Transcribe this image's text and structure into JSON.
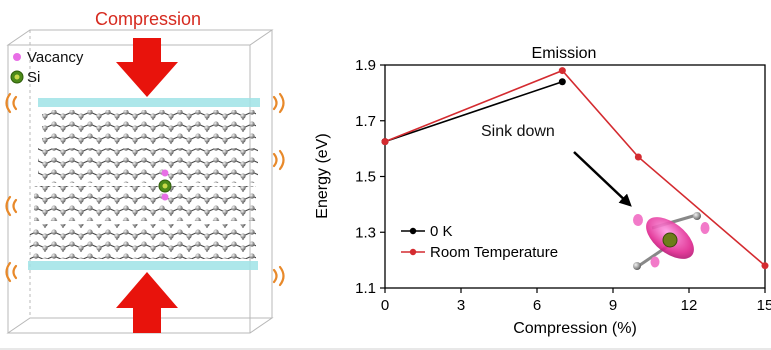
{
  "left_panel": {
    "title": "Compression",
    "legend": [
      {
        "label": "Vacancy",
        "color": "#e86ee6",
        "icon": "vacancy-dot-icon"
      },
      {
        "label": "Si",
        "color": "#4c8a1a",
        "icon": "si-atom-icon"
      }
    ],
    "colors": {
      "arrow": "#e8130c",
      "title": "#d62a1f",
      "atom": "#8c8c8c",
      "hydrogen": "#9fe3e6",
      "vibration": "#e8892a"
    }
  },
  "chart_data": {
    "type": "line",
    "title": "Emission",
    "xlabel": "Compression (%)",
    "ylabel": "Energy (eV)",
    "xlim": [
      0,
      15
    ],
    "ylim": [
      1.1,
      1.9
    ],
    "xticks": [
      0,
      3,
      6,
      9,
      12,
      15
    ],
    "yticks": [
      1.1,
      1.3,
      1.5,
      1.7,
      1.9
    ],
    "grid": false,
    "legend_position": "bottom-left",
    "series": [
      {
        "name": "0 K",
        "color": "#000000",
        "x": [
          0,
          7
        ],
        "y": [
          1.625,
          1.84
        ]
      },
      {
        "name": "Room Temperature",
        "color": "#d42b30",
        "x": [
          0,
          7,
          10,
          15
        ],
        "y": [
          1.625,
          1.88,
          1.57,
          1.18
        ]
      }
    ],
    "annotations": [
      {
        "text": "Sink down"
      }
    ]
  }
}
